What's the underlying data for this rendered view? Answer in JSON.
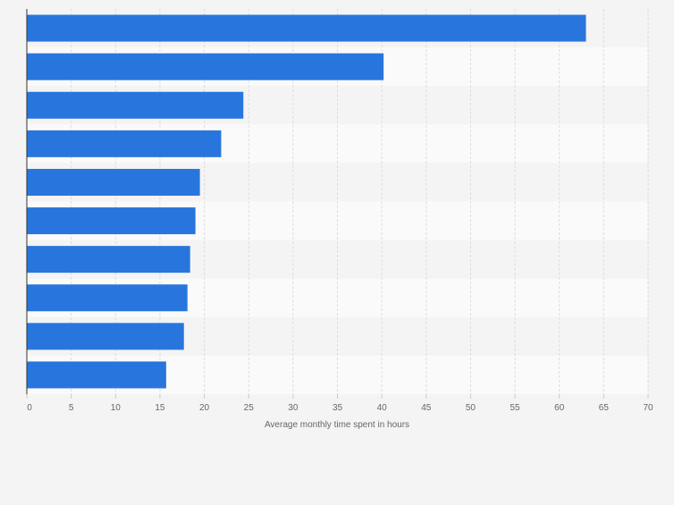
{
  "chart_data": {
    "type": "bar",
    "orientation": "horizontal",
    "categories": [
      "",
      "",
      "",
      "",
      "",
      "",
      "",
      "",
      "",
      ""
    ],
    "values": [
      63,
      40.2,
      24.4,
      21.9,
      19.5,
      19,
      18.4,
      18.1,
      17.7,
      15.7
    ],
    "xlabel": "Average monthly time spent in hours",
    "ylabel": "",
    "xlim": [
      0,
      70
    ],
    "xticks": [
      0,
      5,
      10,
      15,
      20,
      25,
      30,
      35,
      40,
      45,
      50,
      55,
      60,
      65,
      70
    ],
    "xtick_labels": [
      "0",
      "5",
      "10",
      "15",
      "20",
      "25",
      "30",
      "35",
      "40",
      "45",
      "50",
      "55",
      "60",
      "65",
      "70"
    ],
    "grid": true,
    "legend": "none",
    "colors": {
      "bar": "#2876dd",
      "band_even": "#f4f4f4",
      "band_odd": "#fafafa",
      "grid": "#dddddd",
      "axis": "#333333",
      "text": "#666666"
    }
  }
}
